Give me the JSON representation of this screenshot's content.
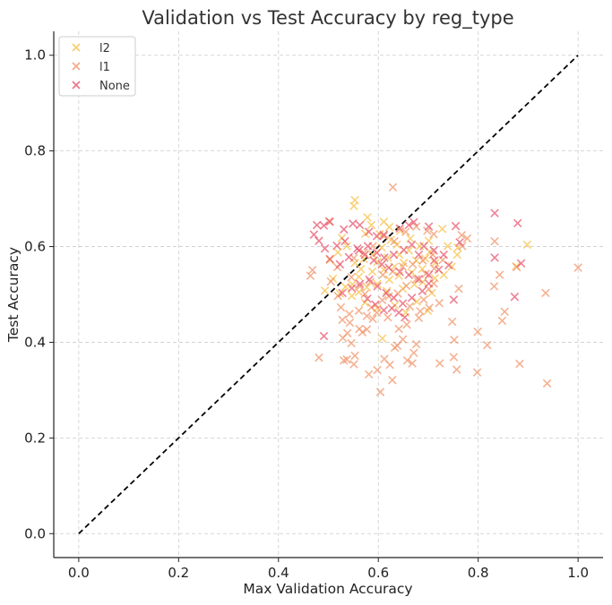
{
  "chart_data": {
    "type": "scatter",
    "title": "Validation vs Test Accuracy by reg_type",
    "xlabel": "Max Validation Accuracy",
    "ylabel": "Test Accuracy",
    "xlim": [
      -0.05,
      1.05
    ],
    "ylim": [
      -0.05,
      1.05
    ],
    "xticks": [
      "0.0",
      "0.2",
      "0.4",
      "0.6",
      "0.8",
      "1.0"
    ],
    "yticks": [
      "0.0",
      "0.2",
      "0.4",
      "0.6",
      "0.8",
      "1.0"
    ],
    "grid": true,
    "legend_position": "top-left",
    "marker": "x",
    "reference_line": {
      "x": [
        0,
        1
      ],
      "y": [
        0,
        1
      ],
      "color": "#000000",
      "style": "dashed"
    },
    "series": [
      {
        "name": "l2",
        "color": "#f7c04a",
        "points": [
          [
            0.553,
            0.697
          ],
          [
            0.551,
            0.685
          ],
          [
            0.578,
            0.661
          ],
          [
            0.611,
            0.652
          ],
          [
            0.586,
            0.645
          ],
          [
            0.622,
            0.641
          ],
          [
            0.644,
            0.633
          ],
          [
            0.603,
            0.626
          ],
          [
            0.728,
            0.637
          ],
          [
            0.898,
            0.604
          ],
          [
            0.876,
            0.559
          ],
          [
            0.758,
            0.583
          ],
          [
            0.759,
            0.598
          ],
          [
            0.739,
            0.601
          ],
          [
            0.701,
            0.612
          ],
          [
            0.664,
            0.617
          ],
          [
            0.637,
            0.604
          ],
          [
            0.607,
            0.598
          ],
          [
            0.589,
            0.583
          ],
          [
            0.571,
            0.574
          ],
          [
            0.553,
            0.566
          ],
          [
            0.537,
            0.601
          ],
          [
            0.519,
            0.588
          ],
          [
            0.503,
            0.572
          ],
          [
            0.493,
            0.508
          ],
          [
            0.523,
            0.502
          ],
          [
            0.548,
            0.521
          ],
          [
            0.561,
            0.537
          ],
          [
            0.588,
            0.548
          ],
          [
            0.611,
            0.552
          ],
          [
            0.632,
            0.558
          ],
          [
            0.651,
            0.566
          ],
          [
            0.676,
            0.571
          ],
          [
            0.694,
            0.575
          ],
          [
            0.714,
            0.566
          ],
          [
            0.688,
            0.553
          ],
          [
            0.667,
            0.546
          ],
          [
            0.641,
            0.539
          ],
          [
            0.622,
            0.531
          ],
          [
            0.598,
            0.522
          ],
          [
            0.577,
            0.515
          ],
          [
            0.561,
            0.505
          ],
          [
            0.617,
            0.507
          ],
          [
            0.649,
            0.512
          ],
          [
            0.672,
            0.521
          ],
          [
            0.689,
            0.526
          ],
          [
            0.713,
            0.534
          ],
          [
            0.731,
            0.541
          ],
          [
            0.608,
            0.408
          ],
          [
            0.655,
            0.462
          ],
          [
            0.699,
            0.466
          ],
          [
            0.677,
            0.485
          ],
          [
            0.633,
            0.477
          ],
          [
            0.598,
            0.471
          ],
          [
            0.573,
            0.483
          ],
          [
            0.547,
            0.497
          ],
          [
            0.534,
            0.516
          ],
          [
            0.707,
            0.503
          ],
          [
            0.747,
            0.558
          ],
          [
            0.661,
            0.592
          ],
          [
            0.642,
            0.583
          ],
          [
            0.619,
            0.577
          ],
          [
            0.598,
            0.568
          ],
          [
            0.683,
            0.601
          ],
          [
            0.703,
            0.589
          ],
          [
            0.625,
            0.614
          ],
          [
            0.574,
            0.627
          ],
          [
            0.527,
            0.618
          ],
          [
            0.509,
            0.533
          ],
          [
            0.565,
            0.553
          ]
        ]
      },
      {
        "name": "l1",
        "color": "#f0946a",
        "points": [
          [
            0.629,
            0.724
          ],
          [
            1.0,
            0.556
          ],
          [
            0.938,
            0.314
          ],
          [
            0.935,
            0.503
          ],
          [
            0.883,
            0.355
          ],
          [
            0.877,
            0.557
          ],
          [
            0.853,
            0.464
          ],
          [
            0.848,
            0.445
          ],
          [
            0.843,
            0.541
          ],
          [
            0.833,
            0.611
          ],
          [
            0.832,
            0.517
          ],
          [
            0.818,
            0.394
          ],
          [
            0.798,
            0.337
          ],
          [
            0.799,
            0.422
          ],
          [
            0.778,
            0.617
          ],
          [
            0.768,
            0.601
          ],
          [
            0.767,
            0.624
          ],
          [
            0.761,
            0.512
          ],
          [
            0.757,
            0.343
          ],
          [
            0.752,
            0.405
          ],
          [
            0.751,
            0.369
          ],
          [
            0.748,
            0.443
          ],
          [
            0.723,
            0.356
          ],
          [
            0.722,
            0.482
          ],
          [
            0.712,
            0.554
          ],
          [
            0.701,
            0.511
          ],
          [
            0.691,
            0.489
          ],
          [
            0.676,
            0.396
          ],
          [
            0.671,
            0.378
          ],
          [
            0.668,
            0.356
          ],
          [
            0.658,
            0.362
          ],
          [
            0.649,
            0.406
          ],
          [
            0.638,
            0.393
          ],
          [
            0.633,
            0.389
          ],
          [
            0.628,
            0.321
          ],
          [
            0.623,
            0.353
          ],
          [
            0.612,
            0.365
          ],
          [
            0.604,
            0.296
          ],
          [
            0.598,
            0.342
          ],
          [
            0.589,
            0.449
          ],
          [
            0.581,
            0.333
          ],
          [
            0.577,
            0.427
          ],
          [
            0.568,
            0.421
          ],
          [
            0.553,
            0.372
          ],
          [
            0.551,
            0.354
          ],
          [
            0.543,
            0.441
          ],
          [
            0.537,
            0.364
          ],
          [
            0.531,
            0.362
          ],
          [
            0.528,
            0.447
          ],
          [
            0.538,
            0.419
          ],
          [
            0.481,
            0.368
          ],
          [
            0.464,
            0.539
          ],
          [
            0.468,
            0.551
          ],
          [
            0.501,
            0.653
          ],
          [
            0.518,
            0.557
          ],
          [
            0.525,
            0.473
          ],
          [
            0.542,
            0.459
          ],
          [
            0.561,
            0.466
          ],
          [
            0.573,
            0.501
          ],
          [
            0.586,
            0.473
          ],
          [
            0.608,
            0.488
          ],
          [
            0.621,
            0.496
          ],
          [
            0.639,
            0.502
          ],
          [
            0.656,
            0.518
          ],
          [
            0.676,
            0.532
          ],
          [
            0.695,
            0.543
          ],
          [
            0.711,
            0.523
          ],
          [
            0.702,
            0.472
          ],
          [
            0.681,
            0.451
          ],
          [
            0.657,
            0.437
          ],
          [
            0.641,
            0.428
          ],
          [
            0.619,
            0.452
          ],
          [
            0.597,
            0.462
          ],
          [
            0.577,
            0.455
          ],
          [
            0.562,
            0.428
          ],
          [
            0.546,
            0.398
          ],
          [
            0.529,
            0.409
          ],
          [
            0.609,
            0.541
          ],
          [
            0.629,
            0.548
          ],
          [
            0.649,
            0.558
          ],
          [
            0.669,
            0.563
          ],
          [
            0.689,
            0.571
          ],
          [
            0.709,
            0.583
          ],
          [
            0.729,
            0.572
          ],
          [
            0.589,
            0.601
          ],
          [
            0.611,
            0.622
          ],
          [
            0.632,
            0.611
          ],
          [
            0.655,
            0.631
          ],
          [
            0.676,
            0.642
          ],
          [
            0.698,
            0.633
          ],
          [
            0.711,
            0.626
          ],
          [
            0.584,
            0.526
          ],
          [
            0.563,
            0.517
          ],
          [
            0.546,
            0.536
          ],
          [
            0.519,
            0.497
          ],
          [
            0.505,
            0.527
          ],
          [
            0.571,
            0.587
          ],
          [
            0.551,
            0.576
          ],
          [
            0.663,
            0.475
          ],
          [
            0.684,
            0.465
          ]
        ]
      },
      {
        "name": "None",
        "color": "#e8516b",
        "points": [
          [
            0.833,
            0.67
          ],
          [
            0.879,
            0.649
          ],
          [
            0.886,
            0.565
          ],
          [
            0.833,
            0.577
          ],
          [
            0.873,
            0.495
          ],
          [
            0.763,
            0.609
          ],
          [
            0.755,
            0.643
          ],
          [
            0.751,
            0.489
          ],
          [
            0.701,
            0.642
          ],
          [
            0.671,
            0.651
          ],
          [
            0.661,
            0.645
          ],
          [
            0.643,
            0.638
          ],
          [
            0.611,
            0.625
          ],
          [
            0.597,
            0.622
          ],
          [
            0.581,
            0.631
          ],
          [
            0.563,
            0.645
          ],
          [
            0.549,
            0.648
          ],
          [
            0.531,
            0.636
          ],
          [
            0.503,
            0.652
          ],
          [
            0.491,
            0.644
          ],
          [
            0.477,
            0.645
          ],
          [
            0.471,
            0.625
          ],
          [
            0.481,
            0.612
          ],
          [
            0.493,
            0.596
          ],
          [
            0.517,
            0.602
          ],
          [
            0.533,
            0.611
          ],
          [
            0.558,
            0.596
          ],
          [
            0.573,
            0.583
          ],
          [
            0.591,
            0.571
          ],
          [
            0.607,
            0.563
          ],
          [
            0.621,
            0.556
          ],
          [
            0.643,
            0.547
          ],
          [
            0.661,
            0.541
          ],
          [
            0.681,
            0.532
          ],
          [
            0.701,
            0.541
          ],
          [
            0.721,
            0.552
          ],
          [
            0.741,
            0.561
          ],
          [
            0.731,
            0.583
          ],
          [
            0.711,
            0.592
          ],
          [
            0.691,
            0.601
          ],
          [
            0.667,
            0.604
          ],
          [
            0.651,
            0.593
          ],
          [
            0.631,
            0.583
          ],
          [
            0.612,
            0.577
          ],
          [
            0.597,
            0.587
          ],
          [
            0.579,
            0.601
          ],
          [
            0.561,
            0.592
          ],
          [
            0.541,
            0.578
          ],
          [
            0.523,
            0.563
          ],
          [
            0.503,
            0.574
          ],
          [
            0.491,
            0.413
          ],
          [
            0.528,
            0.503
          ],
          [
            0.547,
            0.513
          ],
          [
            0.563,
            0.522
          ],
          [
            0.582,
            0.531
          ],
          [
            0.598,
            0.517
          ],
          [
            0.616,
            0.503
          ],
          [
            0.631,
            0.493
          ],
          [
            0.649,
            0.481
          ],
          [
            0.667,
            0.493
          ],
          [
            0.688,
            0.507
          ],
          [
            0.701,
            0.523
          ],
          [
            0.653,
            0.452
          ],
          [
            0.641,
            0.462
          ],
          [
            0.627,
            0.471
          ],
          [
            0.611,
            0.467
          ],
          [
            0.594,
            0.479
          ],
          [
            0.578,
            0.491
          ],
          [
            0.712,
            0.571
          ],
          [
            0.681,
            0.583
          ]
        ]
      }
    ]
  }
}
